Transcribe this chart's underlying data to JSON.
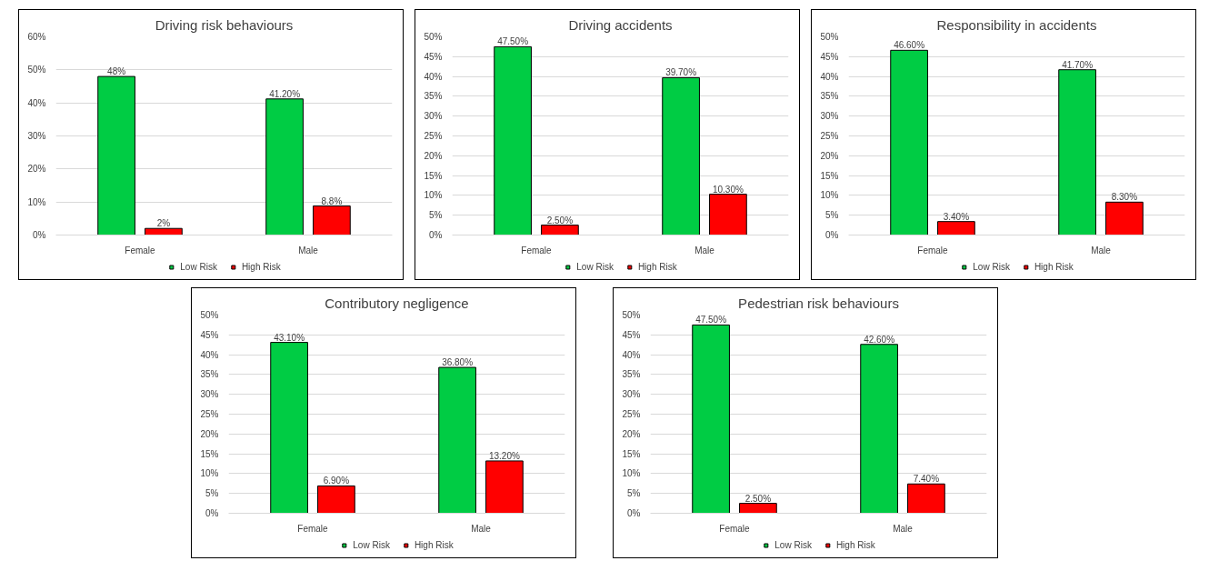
{
  "chart_data": [
    {
      "type": "bar",
      "title": "Driving risk behaviours",
      "categories": [
        "Female",
        "Male"
      ],
      "series": [
        {
          "name": "Low Risk",
          "color": "#00cc44",
          "values": [
            48,
            41.2
          ],
          "value_labels": [
            "48%",
            "41.20%"
          ]
        },
        {
          "name": "High Risk",
          "color": "#ff0000",
          "values": [
            2,
            8.8
          ],
          "value_labels": [
            "2%",
            "8.8%"
          ]
        }
      ],
      "ylim": [
        0,
        60
      ],
      "yticks": [
        {
          "value": 0,
          "label": "0%"
        },
        {
          "value": 10,
          "label": "10%"
        },
        {
          "value": 20,
          "label": "20%"
        },
        {
          "value": 30,
          "label": "30%"
        },
        {
          "value": 40,
          "label": "40%"
        },
        {
          "value": 50,
          "label": "50%"
        },
        {
          "value": 60,
          "label": "60%"
        }
      ],
      "grid": "y",
      "legend": "bottom"
    },
    {
      "type": "bar",
      "title": "Driving accidents",
      "categories": [
        "Female",
        "Male"
      ],
      "series": [
        {
          "name": "Low Risk",
          "color": "#00cc44",
          "values": [
            47.5,
            39.7
          ],
          "value_labels": [
            "47.50%",
            "39.70%"
          ]
        },
        {
          "name": "High Risk",
          "color": "#ff0000",
          "values": [
            2.5,
            10.3
          ],
          "value_labels": [
            "2.50%",
            "10.30%"
          ]
        }
      ],
      "ylim": [
        0,
        50
      ],
      "yticks": [
        {
          "value": 0,
          "label": "0%"
        },
        {
          "value": 5,
          "label": "5%"
        },
        {
          "value": 10,
          "label": "10%"
        },
        {
          "value": 15,
          "label": "15%"
        },
        {
          "value": 20,
          "label": "20%"
        },
        {
          "value": 25,
          "label": "25%"
        },
        {
          "value": 30,
          "label": "30%"
        },
        {
          "value": 35,
          "label": "35%"
        },
        {
          "value": 40,
          "label": "40%"
        },
        {
          "value": 45,
          "label": "45%"
        },
        {
          "value": 50,
          "label": "50%"
        }
      ],
      "grid": "y",
      "legend": "bottom"
    },
    {
      "type": "bar",
      "title": "Responsibility in accidents",
      "categories": [
        "Female",
        "Male"
      ],
      "series": [
        {
          "name": "Low Risk",
          "color": "#00cc44",
          "values": [
            46.6,
            41.7
          ],
          "value_labels": [
            "46.60%",
            "41.70%"
          ]
        },
        {
          "name": "High Risk",
          "color": "#ff0000",
          "values": [
            3.4,
            8.3
          ],
          "value_labels": [
            "3.40%",
            "8.30%"
          ]
        }
      ],
      "ylim": [
        0,
        50
      ],
      "yticks": [
        {
          "value": 0,
          "label": "0%"
        },
        {
          "value": 5,
          "label": "5%"
        },
        {
          "value": 10,
          "label": "10%"
        },
        {
          "value": 15,
          "label": "15%"
        },
        {
          "value": 20,
          "label": "20%"
        },
        {
          "value": 25,
          "label": "25%"
        },
        {
          "value": 30,
          "label": "30%"
        },
        {
          "value": 35,
          "label": "35%"
        },
        {
          "value": 40,
          "label": "40%"
        },
        {
          "value": 45,
          "label": "45%"
        },
        {
          "value": 50,
          "label": "50%"
        }
      ],
      "grid": "y",
      "legend": "bottom"
    },
    {
      "type": "bar",
      "title": "Contributory negligence",
      "categories": [
        "Female",
        "Male"
      ],
      "series": [
        {
          "name": "Low Risk",
          "color": "#00cc44",
          "values": [
            43.1,
            36.8
          ],
          "value_labels": [
            "43.10%",
            "36.80%"
          ]
        },
        {
          "name": "High Risk",
          "color": "#ff0000",
          "values": [
            6.9,
            13.2
          ],
          "value_labels": [
            "6.90%",
            "13.20%"
          ]
        }
      ],
      "ylim": [
        0,
        50
      ],
      "yticks": [
        {
          "value": 0,
          "label": "0%"
        },
        {
          "value": 5,
          "label": "5%"
        },
        {
          "value": 10,
          "label": "10%"
        },
        {
          "value": 15,
          "label": "15%"
        },
        {
          "value": 20,
          "label": "20%"
        },
        {
          "value": 25,
          "label": "25%"
        },
        {
          "value": 30,
          "label": "30%"
        },
        {
          "value": 35,
          "label": "35%"
        },
        {
          "value": 40,
          "label": "40%"
        },
        {
          "value": 45,
          "label": "45%"
        },
        {
          "value": 50,
          "label": "50%"
        }
      ],
      "grid": "y",
      "legend": "bottom"
    },
    {
      "type": "bar",
      "title": "Pedestrian risk behaviours",
      "categories": [
        "Female",
        "Male"
      ],
      "series": [
        {
          "name": "Low Risk",
          "color": "#00cc44",
          "values": [
            47.5,
            42.6
          ],
          "value_labels": [
            "47.50%",
            "42.60%"
          ]
        },
        {
          "name": "High Risk",
          "color": "#ff0000",
          "values": [
            2.5,
            7.4
          ],
          "value_labels": [
            "2.50%",
            "7.40%"
          ]
        }
      ],
      "ylim": [
        0,
        50
      ],
      "yticks": [
        {
          "value": 0,
          "label": "0%"
        },
        {
          "value": 5,
          "label": "5%"
        },
        {
          "value": 10,
          "label": "10%"
        },
        {
          "value": 15,
          "label": "15%"
        },
        {
          "value": 20,
          "label": "20%"
        },
        {
          "value": 25,
          "label": "25%"
        },
        {
          "value": 30,
          "label": "30%"
        },
        {
          "value": 35,
          "label": "35%"
        },
        {
          "value": 40,
          "label": "40%"
        },
        {
          "value": 45,
          "label": "45%"
        },
        {
          "value": 50,
          "label": "50%"
        }
      ],
      "grid": "y",
      "legend": "bottom"
    }
  ]
}
